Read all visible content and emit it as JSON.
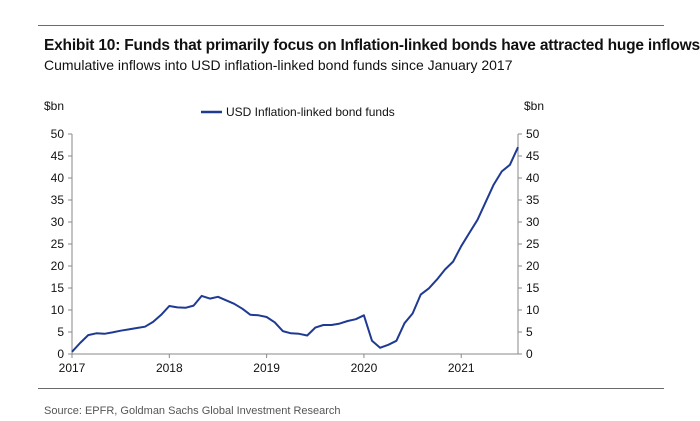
{
  "header": {
    "title": "Exhibit 10: Funds that primarily focus on Inflation-linked bonds have attracted huge inflows",
    "subtitle": "Cumulative inflows into USD inflation-linked bond funds since January 2017"
  },
  "footer": {
    "source": "Source: EPFR, Goldman Sachs Global Investment Research"
  },
  "chart_data": {
    "type": "line",
    "title": "",
    "xlabel": "",
    "ylabel_left": "$bn",
    "ylabel_right": "$bn",
    "ylim": [
      0,
      50
    ],
    "yticks": [
      0,
      5,
      10,
      15,
      20,
      25,
      30,
      35,
      40,
      45,
      50
    ],
    "xlim": [
      "2017-01",
      "2021-08"
    ],
    "xticks": [
      "2017",
      "2018",
      "2019",
      "2020",
      "2021"
    ],
    "legend_position": "top-center",
    "grid": false,
    "colors": {
      "series": "#1f3a93",
      "axis": "#888888"
    },
    "series": [
      {
        "name": "USD Inflation-linked bond funds",
        "x": [
          "2017-01",
          "2017-02",
          "2017-03",
          "2017-04",
          "2017-05",
          "2017-06",
          "2017-07",
          "2017-08",
          "2017-09",
          "2017-10",
          "2017-11",
          "2017-12",
          "2018-01",
          "2018-02",
          "2018-03",
          "2018-04",
          "2018-05",
          "2018-06",
          "2018-07",
          "2018-08",
          "2018-09",
          "2018-10",
          "2018-11",
          "2018-12",
          "2019-01",
          "2019-02",
          "2019-03",
          "2019-04",
          "2019-05",
          "2019-06",
          "2019-07",
          "2019-08",
          "2019-09",
          "2019-10",
          "2019-11",
          "2019-12",
          "2020-01",
          "2020-02",
          "2020-03",
          "2020-04",
          "2020-05",
          "2020-06",
          "2020-07",
          "2020-08",
          "2020-09",
          "2020-10",
          "2020-11",
          "2020-12",
          "2021-01",
          "2021-02",
          "2021-03",
          "2021-04",
          "2021-05",
          "2021-06",
          "2021-07",
          "2021-08"
        ],
        "values": [
          0.5,
          2.5,
          4.3,
          4.7,
          4.6,
          4.9,
          5.3,
          5.6,
          5.9,
          6.2,
          7.3,
          8.9,
          10.9,
          10.6,
          10.5,
          11.0,
          13.2,
          12.6,
          13.0,
          12.2,
          11.4,
          10.3,
          8.9,
          8.8,
          8.4,
          7.2,
          5.2,
          4.7,
          4.6,
          4.2,
          6.0,
          6.6,
          6.6,
          6.9,
          7.5,
          7.9,
          8.8,
          3.0,
          1.4,
          2.1,
          3.0,
          7.0,
          9.2,
          13.5,
          14.9,
          16.9,
          19.2,
          21.0,
          24.5,
          27.5,
          30.5,
          34.5,
          38.5,
          41.5,
          43.0,
          47.0
        ]
      }
    ]
  }
}
